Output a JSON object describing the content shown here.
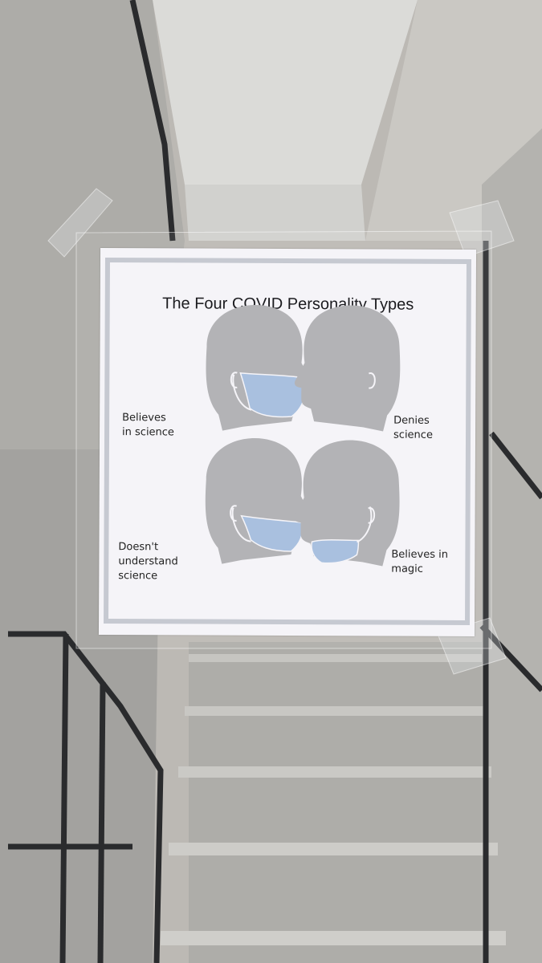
{
  "poster": {
    "title": "The Four COVID Personality Types",
    "types": [
      {
        "label_lines": [
          "Believes",
          "in science"
        ]
      },
      {
        "label_lines": [
          "Denies",
          "science"
        ]
      },
      {
        "label_lines": [
          "Doesn't",
          "understand",
          "science"
        ]
      },
      {
        "label_lines": [
          "Believes in",
          "magic"
        ]
      }
    ]
  },
  "colors": {
    "head": "#b3b3b6",
    "mask": "#a9c0df",
    "frame": "#c6c9d1",
    "paper": "#f5f4f8"
  }
}
